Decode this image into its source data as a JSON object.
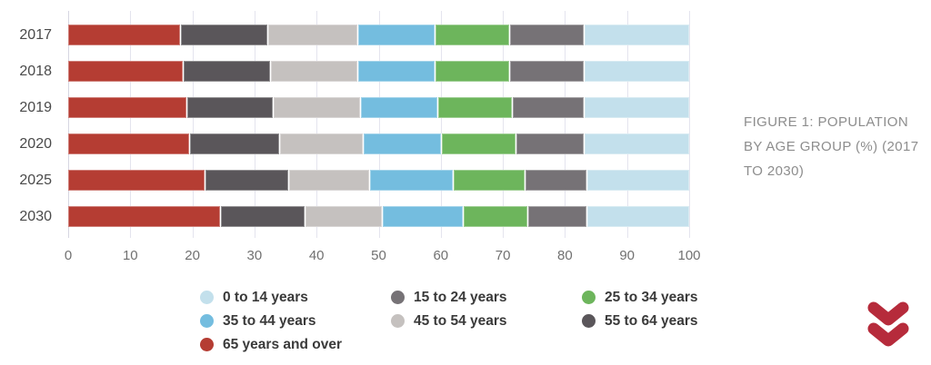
{
  "caption": {
    "text": "FIGURE 1: POPULATION BY AGE GROUP (%) (2017 TO 2030)",
    "lines": [
      "FIGURE 1: POPULATION",
      "BY AGE GROUP (%) (2017",
      "TO 2030)"
    ]
  },
  "colors": {
    "grid": "#e4e4ee",
    "axis": "#d6d6e2",
    "y_label_text": "#4a4a4a",
    "x_tick_text": "#717171",
    "legend_text": "#3a3a3a",
    "caption_text": "#8d8d8d",
    "chevron_icon": "#b62b3b"
  },
  "icons": {
    "chevron": "double-chevron-down"
  },
  "chart_data": {
    "type": "bar",
    "orientation": "horizontal",
    "stacked": true,
    "title": "",
    "xlabel": "",
    "ylabel": "",
    "xlim": [
      0,
      100
    ],
    "grid": true,
    "legend_position": "bottom",
    "categories": [
      "2017",
      "2018",
      "2019",
      "2020",
      "2025",
      "2030"
    ],
    "x_ticks": [
      0,
      10,
      20,
      30,
      40,
      50,
      60,
      70,
      80,
      90,
      100
    ],
    "series": [
      {
        "name": "0 to 14 years",
        "color": "#c3e0ec",
        "values": [
          17,
          17,
          17,
          17,
          16.5,
          16.5
        ]
      },
      {
        "name": "15 to 24 years",
        "color": "#767276",
        "values": [
          12,
          12,
          11.5,
          11,
          10,
          9.5
        ]
      },
      {
        "name": "25 to 34 years",
        "color": "#6db55c",
        "values": [
          12,
          12,
          12,
          12,
          11.5,
          10.5
        ]
      },
      {
        "name": "35 to 44 years",
        "color": "#74bddf",
        "values": [
          12.5,
          12.5,
          12.5,
          12.5,
          13.5,
          13
        ]
      },
      {
        "name": "45 to 54 years",
        "color": "#c5c1bf",
        "values": [
          14.5,
          14,
          14,
          13.5,
          13,
          12.5
        ]
      },
      {
        "name": "55 to 64 years",
        "color": "#5a565a",
        "values": [
          14,
          14,
          14,
          14.5,
          13.5,
          13.5
        ]
      },
      {
        "name": "65 years and over",
        "color": "#b53d33",
        "values": [
          18,
          18.5,
          19,
          19.5,
          22,
          24.5
        ]
      }
    ],
    "stack_order": [
      "65 years and over",
      "55 to 64 years",
      "45 to 54 years",
      "35 to 44 years",
      "25 to 34 years",
      "15 to 24 years",
      "0 to 14 years"
    ]
  }
}
